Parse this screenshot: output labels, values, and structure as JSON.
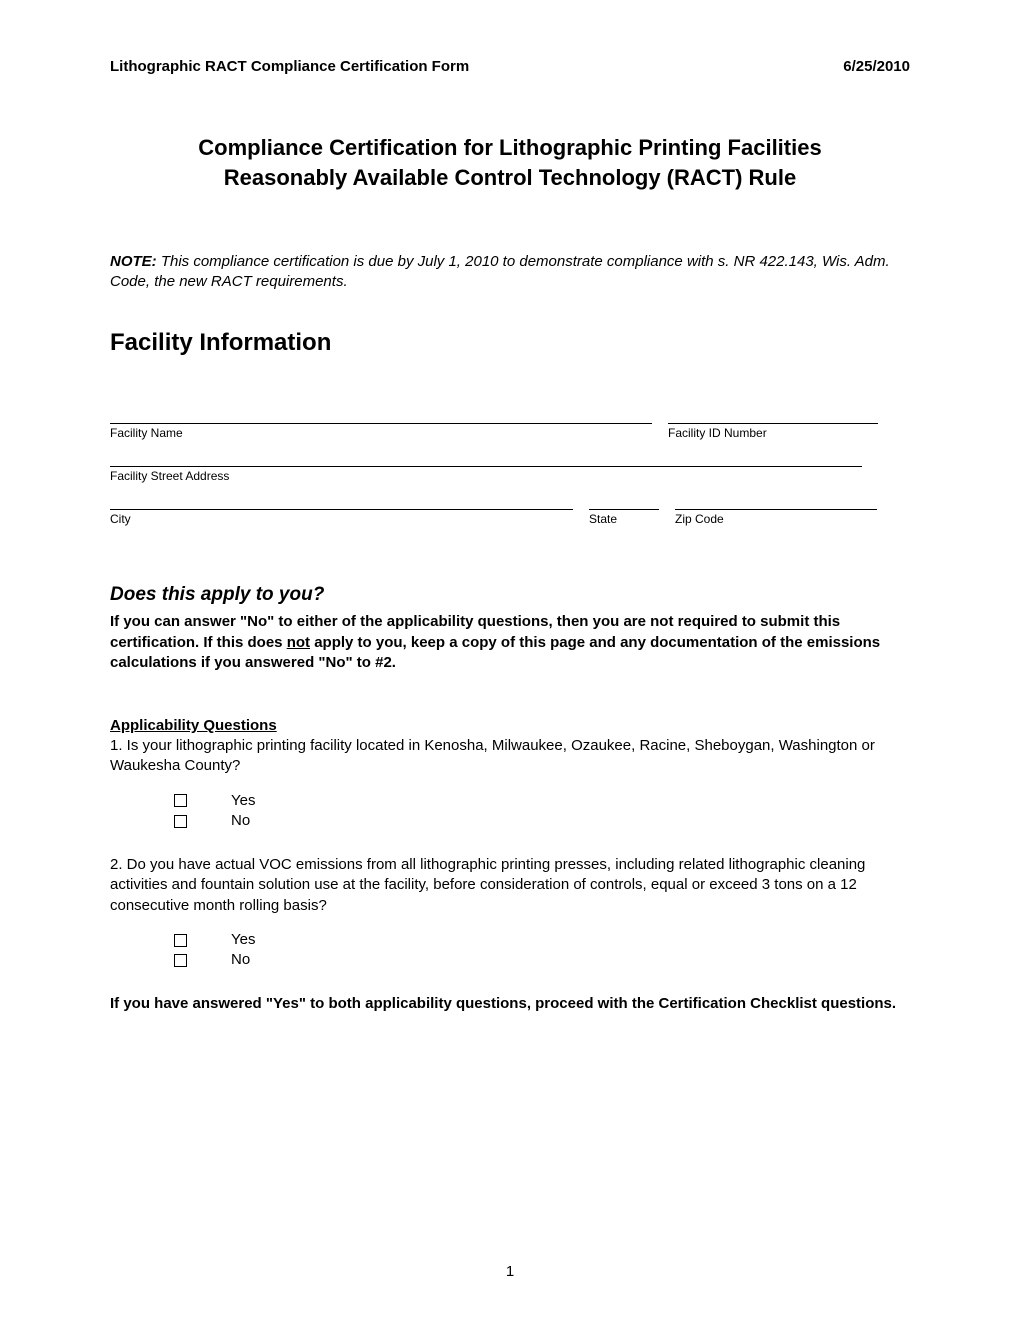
{
  "header": {
    "left": "Lithographic RACT Compliance Certification Form",
    "right": "6/25/2010"
  },
  "title": {
    "line1": "Compliance Certification for Lithographic Printing Facilities",
    "line2": "Reasonably Available Control Technology (RACT) Rule"
  },
  "note": {
    "label": "NOTE:",
    "text": "  This compliance certification is due by July 1, 2010 to demonstrate compliance with s. NR 422.143, Wis. Adm. Code, the new RACT requirements."
  },
  "facility_section": {
    "heading": "Facility Information",
    "fields": {
      "name_label": "Facility Name",
      "id_label": "Facility ID Number",
      "address_label": "Facility Street Address",
      "city_label": "City",
      "state_label": "State",
      "zip_label": "Zip Code"
    }
  },
  "apply": {
    "heading": "Does this apply to you?",
    "intro_1": "If you can answer \"No\" to either of the applicability questions, then you are not required to submit this certification.  If this does ",
    "intro_not": "not",
    "intro_2": " apply to you, keep a copy of this page and any documentation of the emissions calculations if you answered \"No\" to #2."
  },
  "appq": {
    "heading": "Applicability Questions",
    "q1": "1.  Is your lithographic printing facility located in Kenosha, Milwaukee, Ozaukee, Racine, Sheboygan, Washington or Waukesha County?",
    "q2": "2.  Do you have actual VOC emissions from all lithographic printing presses, including related lithographic cleaning activities and fountain solution use at the facility, before consideration of controls, equal or exceed 3 tons on a 12 consecutive month rolling basis?",
    "yes": "Yes",
    "no": "No",
    "outro": "If you have answered \"Yes\" to both applicability questions, proceed with the Certification Checklist questions."
  },
  "page_number": "1"
}
